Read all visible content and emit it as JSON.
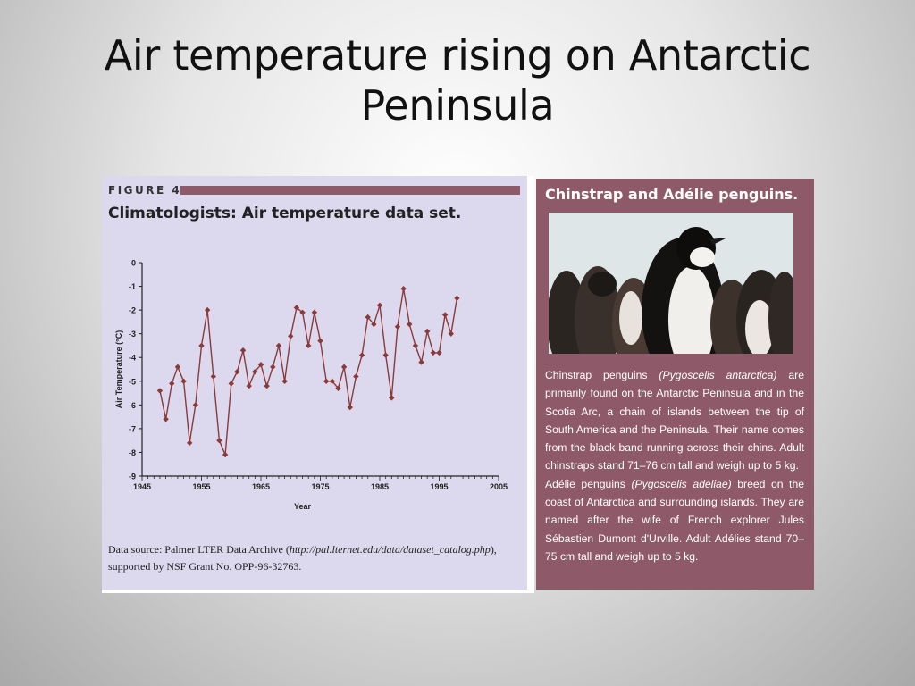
{
  "slide": {
    "title_line1": "Air temperature rising on Antarctic",
    "title_line2": "Peninsula"
  },
  "figure": {
    "label": "FIGURE 4",
    "heading": "Climatologists: Air temperature data set.",
    "source_prefix": "Data source: Palmer LTER Data Archive (",
    "source_url": "http://pal.lternet.edu/data/dataset_catalog.php",
    "source_suffix": "), supported by NSF Grant No. OPP-96-32763."
  },
  "chart_data": {
    "type": "line",
    "xlabel": "Year",
    "ylabel": "Air Temperature (°C)",
    "xlim": [
      1945,
      2005
    ],
    "ylim": [
      -9,
      0
    ],
    "x_ticks": [
      1945,
      1955,
      1965,
      1975,
      1985,
      1995,
      2005
    ],
    "y_ticks": [
      0,
      -1,
      -2,
      -3,
      -4,
      -5,
      -6,
      -7,
      -8,
      -9
    ],
    "grid": false,
    "color": "#8b3a3a",
    "x": [
      1948,
      1949,
      1950,
      1951,
      1952,
      1953,
      1954,
      1955,
      1956,
      1957,
      1958,
      1959,
      1960,
      1961,
      1962,
      1963,
      1964,
      1965,
      1966,
      1967,
      1968,
      1969,
      1970,
      1971,
      1972,
      1973,
      1974,
      1975,
      1976,
      1977,
      1978,
      1979,
      1980,
      1981,
      1982,
      1983,
      1984,
      1985,
      1986,
      1987,
      1988,
      1989,
      1990,
      1991,
      1992,
      1993,
      1994,
      1995,
      1996,
      1997,
      1998
    ],
    "values": [
      -5.4,
      -6.6,
      -5.1,
      -4.4,
      -5.0,
      -7.6,
      -6.0,
      -3.5,
      -2.0,
      -4.8,
      -7.5,
      -8.1,
      -5.1,
      -4.6,
      -3.7,
      -5.2,
      -4.6,
      -4.3,
      -5.2,
      -4.4,
      -3.5,
      -5.0,
      -3.1,
      -1.9,
      -2.1,
      -3.5,
      -2.1,
      -3.3,
      -5.0,
      -5.0,
      -5.3,
      -4.4,
      -6.1,
      -4.8,
      -3.9,
      -2.3,
      -2.6,
      -1.8,
      -3.9,
      -5.7,
      -2.7,
      -1.1,
      -2.6,
      -3.5,
      -4.2,
      -2.9,
      -3.8,
      -3.8,
      -2.2,
      -3.0,
      -1.5
    ]
  },
  "penguins": {
    "heading": "Chinstrap and Adélie penguins.",
    "p1_pre": "Chinstrap penguins ",
    "p1_sci": "(Pygoscelis antarctica)",
    "p1_post": " are primarily found on the Antarctic Peninsula and in the Scotia Arc, a chain of islands between the tip of South America and the Peninsula. Their name comes from the black band running across their chins. Adult chinstraps stand 71–76 cm tall and weigh up to 5 kg.",
    "p2_pre": "Adélie penguins ",
    "p2_sci": "(Pygoscelis adeliae)",
    "p2_post": " breed on the coast of Antarctica and surrounding islands. They are named after the wife of French explorer Jules Sébastien Dumont d'Urville. Adult Adélies stand 70–75 cm tall and weigh up to 5 kg."
  }
}
